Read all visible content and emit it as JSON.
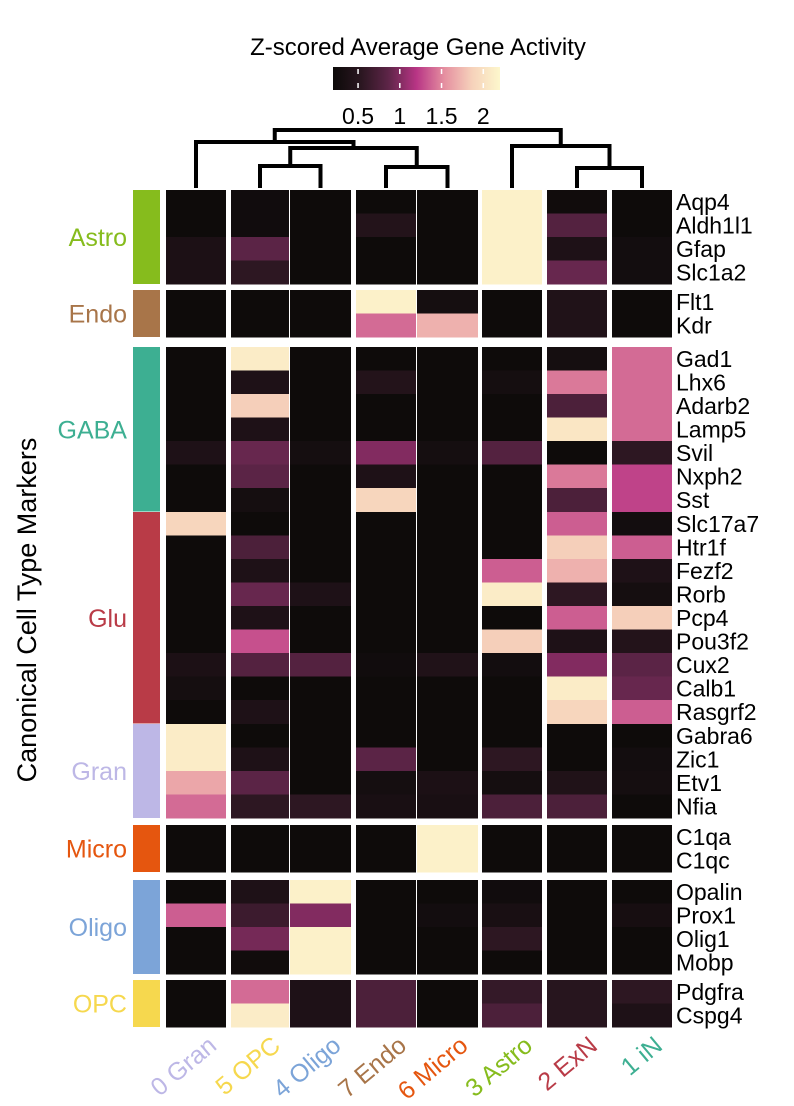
{
  "chart_data": {
    "type": "heatmap",
    "title": "Z-scored Average Gene Activity",
    "ylabel": "Canonical Cell Type Markers",
    "colorbar": {
      "ticks": [
        0.5,
        1,
        1.5,
        2
      ],
      "tick_labels": [
        "0.5",
        "1",
        "1.5",
        "2"
      ],
      "range": [
        0.2,
        2.2
      ],
      "colors": [
        "#0c0a09",
        "#2a1620",
        "#5e2548",
        "#b83585",
        "#e58fa0",
        "#f6d2bb",
        "#fdf7cc"
      ]
    },
    "columns": [
      {
        "label": "0 Gran",
        "color": "#bdb7e6"
      },
      {
        "label": "5 OPC",
        "color": "#f6d84e"
      },
      {
        "label": "4 Oligo",
        "color": "#7ca4d8"
      },
      {
        "label": "7 Endo",
        "color": "#a87549"
      },
      {
        "label": "6 Micro",
        "color": "#e5560f"
      },
      {
        "label": "3 Astro",
        "color": "#86bc1d"
      },
      {
        "label": "2 ExN",
        "color": "#b93b47"
      },
      {
        "label": "1 iN",
        "color": "#3daf92"
      }
    ],
    "groups": [
      {
        "label": "Astro",
        "color": "#86bc1d",
        "genes": [
          "Aqp4",
          "Aldh1l1",
          "Gfap",
          "Slc1a2"
        ],
        "values": [
          [
            0.22,
            0.26,
            0.22,
            0.22,
            0.22,
            2.15,
            0.25,
            0.22
          ],
          [
            0.22,
            0.26,
            0.22,
            0.45,
            0.22,
            2.15,
            0.8,
            0.22
          ],
          [
            0.38,
            0.85,
            0.22,
            0.22,
            0.22,
            2.15,
            0.4,
            0.28
          ],
          [
            0.38,
            0.55,
            0.22,
            0.22,
            0.22,
            2.15,
            0.9,
            0.28
          ]
        ]
      },
      {
        "label": "Endo",
        "color": "#a87549",
        "genes": [
          "Flt1",
          "Kdr"
        ],
        "values": [
          [
            0.22,
            0.22,
            0.22,
            2.15,
            0.3,
            0.22,
            0.42,
            0.22
          ],
          [
            0.22,
            0.22,
            0.22,
            1.4,
            1.7,
            0.22,
            0.42,
            0.22
          ]
        ]
      },
      {
        "label": "GABA",
        "color": "#3daf92",
        "genes": [
          "Gad1",
          "Lhx6",
          "Adarb2",
          "Lamp5",
          "Svil",
          "Nxph2",
          "Sst"
        ],
        "values": [
          [
            0.22,
            2.1,
            0.22,
            0.22,
            0.22,
            0.22,
            0.3,
            1.4
          ],
          [
            0.22,
            0.4,
            0.22,
            0.45,
            0.22,
            0.3,
            1.45,
            1.4
          ],
          [
            0.22,
            1.85,
            0.22,
            0.22,
            0.22,
            0.22,
            0.75,
            1.4
          ],
          [
            0.22,
            0.4,
            0.22,
            0.22,
            0.22,
            0.22,
            2.05,
            1.4
          ],
          [
            0.4,
            0.9,
            0.3,
            1.0,
            0.3,
            0.8,
            0.22,
            0.55
          ],
          [
            0.22,
            0.85,
            0.22,
            0.4,
            0.22,
            0.22,
            1.45,
            1.25
          ],
          [
            0.22,
            0.3,
            0.22,
            1.9,
            0.22,
            0.22,
            0.75,
            1.25
          ]
        ]
      },
      {
        "label": "Glu",
        "color": "#b93b47",
        "genes": [
          "Slc17a7",
          "Htr1f",
          "Fezf2",
          "Rorb",
          "Pcp4",
          "Pou3f2",
          "Cux2",
          "Calb1",
          "Rasgrf2"
        ],
        "values": [
          [
            1.9,
            0.22,
            0.22,
            0.22,
            0.22,
            0.22,
            1.35,
            0.28
          ],
          [
            0.22,
            0.75,
            0.22,
            0.22,
            0.22,
            0.22,
            1.85,
            1.35
          ],
          [
            0.22,
            0.4,
            0.22,
            0.22,
            0.22,
            1.35,
            1.7,
            0.4
          ],
          [
            0.22,
            0.9,
            0.4,
            0.22,
            0.22,
            2.1,
            0.55,
            0.3
          ],
          [
            0.22,
            0.4,
            0.22,
            0.22,
            0.22,
            0.22,
            1.35,
            1.85
          ],
          [
            0.22,
            1.3,
            0.22,
            0.22,
            0.22,
            1.85,
            0.4,
            0.45
          ],
          [
            0.38,
            0.8,
            0.8,
            0.26,
            0.42,
            0.28,
            1.0,
            0.85
          ],
          [
            0.3,
            0.22,
            0.22,
            0.22,
            0.22,
            0.22,
            2.1,
            0.9
          ],
          [
            0.22,
            0.4,
            0.22,
            0.22,
            0.22,
            0.22,
            1.9,
            1.35
          ]
        ]
      },
      {
        "label": "Gran",
        "color": "#bdb7e6",
        "genes": [
          "Gabra6",
          "Zic1",
          "Etv1",
          "Nfia"
        ],
        "values": [
          [
            2.1,
            0.22,
            0.22,
            0.22,
            0.22,
            0.22,
            0.22,
            0.22
          ],
          [
            2.1,
            0.4,
            0.22,
            0.85,
            0.22,
            0.55,
            0.22,
            0.28
          ],
          [
            1.65,
            0.85,
            0.22,
            0.3,
            0.38,
            0.3,
            0.42,
            0.3
          ],
          [
            1.4,
            0.55,
            0.55,
            0.35,
            0.35,
            0.75,
            0.75,
            0.22
          ]
        ]
      },
      {
        "label": "Micro",
        "color": "#e5560f",
        "genes": [
          "C1qa",
          "C1qc"
        ],
        "values": [
          [
            0.22,
            0.22,
            0.22,
            0.22,
            2.15,
            0.22,
            0.22,
            0.22
          ],
          [
            0.22,
            0.22,
            0.22,
            0.22,
            2.15,
            0.22,
            0.22,
            0.22
          ]
        ]
      },
      {
        "label": "Oligo",
        "color": "#7ca4d8",
        "genes": [
          "Opalin",
          "Prox1",
          "Olig1",
          "Mobp"
        ],
        "values": [
          [
            0.22,
            0.4,
            2.15,
            0.22,
            0.22,
            0.26,
            0.22,
            0.22
          ],
          [
            1.35,
            0.65,
            1.0,
            0.22,
            0.28,
            0.35,
            0.22,
            0.32
          ],
          [
            0.22,
            0.95,
            2.15,
            0.22,
            0.22,
            0.55,
            0.22,
            0.22
          ],
          [
            0.22,
            0.25,
            2.15,
            0.22,
            0.22,
            0.22,
            0.22,
            0.22
          ]
        ]
      },
      {
        "label": "OPC",
        "color": "#f6d84e",
        "genes": [
          "Pdgfra",
          "Cspg4"
        ],
        "values": [
          [
            0.22,
            1.4,
            0.4,
            0.75,
            0.22,
            0.6,
            0.5,
            0.55
          ],
          [
            0.22,
            2.1,
            0.4,
            0.75,
            0.22,
            0.75,
            0.5,
            0.4
          ]
        ]
      }
    ]
  }
}
